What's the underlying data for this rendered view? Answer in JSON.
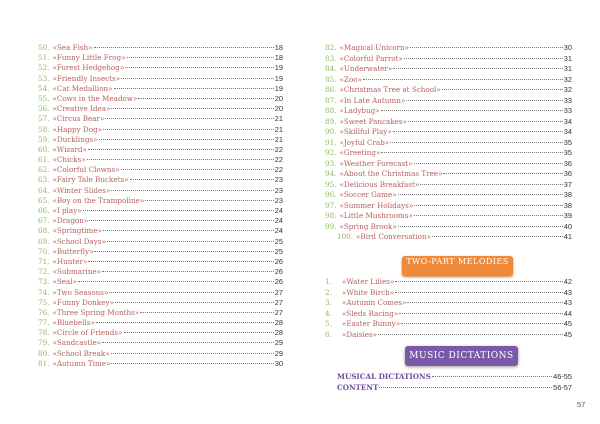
{
  "left_items": [
    {
      "n": "50.",
      "t": "«Sea Fish»",
      "p": "18"
    },
    {
      "n": "51.",
      "t": "«Funny Little Frog»",
      "p": "18"
    },
    {
      "n": "52.",
      "t": "«Forest Hedgehog»",
      "p": "19"
    },
    {
      "n": "53.",
      "t": "«Friendly Insects»",
      "p": "19"
    },
    {
      "n": "54.",
      "t": "«Cat Medallion»",
      "p": "19"
    },
    {
      "n": "55.",
      "t": "«Cows in the Meadow»",
      "p": "20"
    },
    {
      "n": "56.",
      "t": "«Creative Idea»",
      "p": "20"
    },
    {
      "n": "57.",
      "t": "«Circus Bear»",
      "p": "21"
    },
    {
      "n": "58.",
      "t": "«Happy Dog»",
      "p": "21"
    },
    {
      "n": "59.",
      "t": "«Ducklings»",
      "p": "21"
    },
    {
      "n": "60.",
      "t": "«Wizard»",
      "p": "22"
    },
    {
      "n": "61.",
      "t": "«Chicks»",
      "p": "22"
    },
    {
      "n": "62.",
      "t": "«Colorful Clowns»",
      "p": "22"
    },
    {
      "n": "63.",
      "t": "«Fairy Tale Buckets»",
      "p": "23"
    },
    {
      "n": "64.",
      "t": "«Winter Slides»",
      "p": "23"
    },
    {
      "n": "65.",
      "t": "«Boy on the Trampoline»",
      "p": "23"
    },
    {
      "n": "66.",
      "t": "«I play»",
      "p": "24"
    },
    {
      "n": "67.",
      "t": "«Dragon»",
      "p": "24"
    },
    {
      "n": "68.",
      "t": "«Springtime»",
      "p": "24"
    },
    {
      "n": "69.",
      "t": "«School Days»",
      "p": "25"
    },
    {
      "n": "70.",
      "t": "«Butterfly»",
      "p": "25"
    },
    {
      "n": "71.",
      "t": "«Hunter»",
      "p": "26"
    },
    {
      "n": "72.",
      "t": "«Submarine»",
      "p": "26"
    },
    {
      "n": "73.",
      "t": "«Seal»",
      "p": "26"
    },
    {
      "n": "74.",
      "t": "«Two Seasons»",
      "p": "27"
    },
    {
      "n": "75.",
      "t": "«Funny Donkey»",
      "p": "27"
    },
    {
      "n": "76.",
      "t": "«Three Spring Months»",
      "p": "27"
    },
    {
      "n": "77.",
      "t": "«Bluebells»",
      "p": "28"
    },
    {
      "n": "78.",
      "t": "«Circle of Friends»",
      "p": "28"
    },
    {
      "n": "79.",
      "t": "«Sandcastle»",
      "p": "29"
    },
    {
      "n": "80.",
      "t": "«School Break»",
      "p": "29"
    },
    {
      "n": "81.",
      "t": "«Autumn Time»",
      "p": "30"
    }
  ],
  "right_items": [
    {
      "n": "82.",
      "t": "«Magical Unicorn»",
      "p": "30"
    },
    {
      "n": "83.",
      "t": "«Colorful Parrot»",
      "p": "31"
    },
    {
      "n": "84.",
      "t": "«Underwater»",
      "p": "31"
    },
    {
      "n": "85.",
      "t": "«Zoo»",
      "p": "32"
    },
    {
      "n": "86.",
      "t": "«Christmas Tree at School»",
      "p": "32"
    },
    {
      "n": "87.",
      "t": "«In Late Autumn»",
      "p": "33"
    },
    {
      "n": "88.",
      "t": "«Ladybug»",
      "p": "33"
    },
    {
      "n": "89.",
      "t": "«Sweet Pancakes»",
      "p": "34"
    },
    {
      "n": "90.",
      "t": "«Skillful Play»",
      "p": "34"
    },
    {
      "n": "91.",
      "t": "«Joyful Crab»",
      "p": "35"
    },
    {
      "n": "92.",
      "t": "«Greeting»",
      "p": "35"
    },
    {
      "n": "93.",
      "t": "«Weather Forecast»",
      "p": "36"
    },
    {
      "n": "94.",
      "t": "«About the Christmas Tree»",
      "p": "36"
    },
    {
      "n": "95.",
      "t": "«Delicious Breakfast»",
      "p": "37"
    },
    {
      "n": "96.",
      "t": "«Soccer Game»",
      "p": "38"
    },
    {
      "n": "97.",
      "t": "«Summer Holidays»",
      "p": "38"
    },
    {
      "n": "98.",
      "t": "«Little Mushrooms»",
      "p": "39"
    },
    {
      "n": "99.",
      "t": "«Spring Brook»",
      "p": "40"
    },
    {
      "n": "100.",
      "t": "«Bird Conversation»",
      "p": "41"
    }
  ],
  "two_part": {
    "heading": "TWO-PART MELODIES",
    "items": [
      {
        "n": "1.",
        "t": "«Water Lilies»",
        "p": "42"
      },
      {
        "n": "2.",
        "t": "«White Birch»",
        "p": "43"
      },
      {
        "n": "3.",
        "t": "«Autumn Comes»",
        "p": "43"
      },
      {
        "n": "4.",
        "t": "«Sleds Racing»",
        "p": "44"
      },
      {
        "n": "5.",
        "t": "«Easter Bunny»",
        "p": "45"
      },
      {
        "n": "6.",
        "t": "«Daisies»",
        "p": "45"
      }
    ]
  },
  "dictations": {
    "heading": "MUSIC DICTATIONS",
    "items": [
      {
        "n": "",
        "t": "MUSICAL DICTATIONS",
        "p": "46-55"
      },
      {
        "n": "",
        "t": "CONTENT",
        "p": "56-57"
      }
    ]
  },
  "page_number": "57",
  "colors": {
    "number": "#8dbb63",
    "title": "#b5615c",
    "two_part_badge": "#ee8a3a",
    "dictations_badge": "#7a5aa8"
  }
}
